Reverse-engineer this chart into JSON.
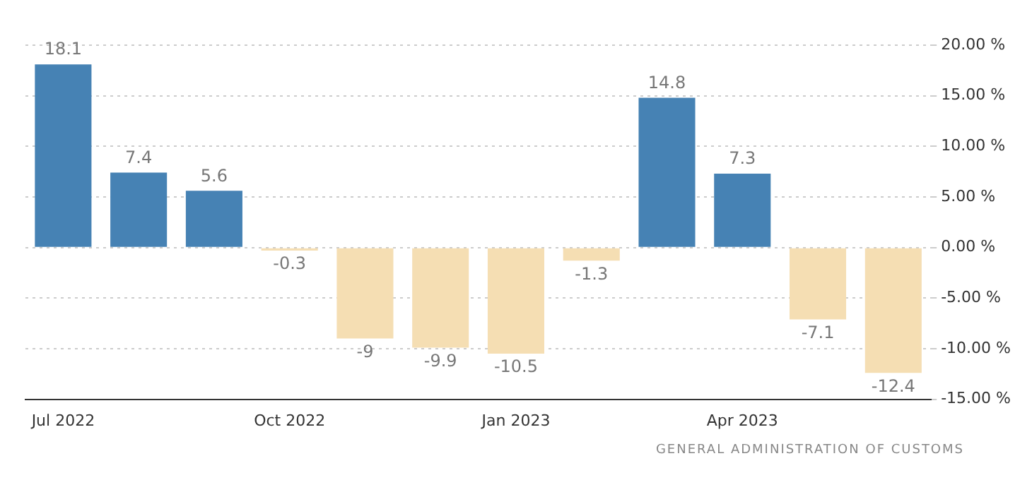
{
  "chart_data": {
    "type": "bar",
    "categories": [
      "Jul 2022",
      null,
      null,
      "Oct 2022",
      null,
      null,
      "Jan 2023",
      null,
      null,
      "Apr 2023",
      null,
      null
    ],
    "values": [
      18.1,
      7.4,
      5.6,
      -0.3,
      -9,
      -9.9,
      -10.5,
      -1.3,
      14.8,
      7.3,
      -7.1,
      -12.4
    ],
    "colors": [
      "#4682b4",
      "#4682b4",
      "#4682b4",
      "#f5deb3",
      "#f5deb3",
      "#f5deb3",
      "#f5deb3",
      "#f5deb3",
      "#4682b4",
      "#4682b4",
      "#f5deb3",
      "#f5deb3"
    ],
    "ylim": [
      -15,
      20
    ],
    "yticks": [
      {
        "value": -15,
        "label": "-15.00 %"
      },
      {
        "value": -10,
        "label": "-10.00 %"
      },
      {
        "value": -5,
        "label": "-5.00 %"
      },
      {
        "value": 0,
        "label": "0.00 %"
      },
      {
        "value": 5,
        "label": "5.00 %"
      },
      {
        "value": 10,
        "label": "10.00 %"
      },
      {
        "value": 15,
        "label": "15.00 %"
      },
      {
        "value": 20,
        "label": "20.00 %"
      }
    ],
    "grid": "y",
    "data_labels": true,
    "annotations": [
      "GENERAL ADMINISTRATION OF CUSTOMS"
    ]
  }
}
